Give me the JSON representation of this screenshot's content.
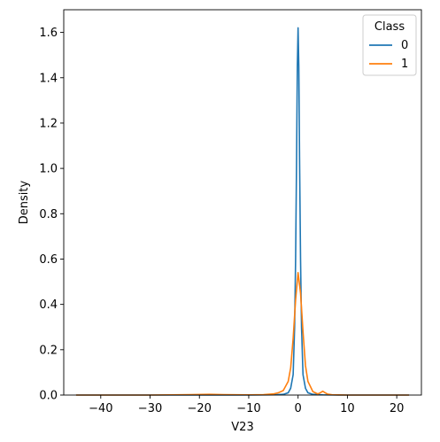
{
  "chart_data": {
    "type": "line",
    "xlabel": "V23",
    "ylabel": "Density",
    "xlim": [
      -47.5,
      25
    ],
    "ylim": [
      0,
      1.7
    ],
    "x_ticks": [
      -40,
      -30,
      -20,
      -10,
      0,
      10,
      20
    ],
    "x_tick_labels": [
      "−40",
      "−30",
      "−20",
      "−10",
      "0",
      "10",
      "20"
    ],
    "y_ticks": [
      0.0,
      0.2,
      0.4,
      0.6,
      0.8,
      1.0,
      1.2,
      1.4,
      1.6
    ],
    "y_tick_labels": [
      "0.0",
      "0.2",
      "0.4",
      "0.6",
      "0.8",
      "1.0",
      "1.2",
      "1.4",
      "1.6"
    ],
    "grid": false,
    "legend": {
      "title": "Class",
      "placement": "top-right"
    },
    "series": [
      {
        "name": "0",
        "color": "#1f77b4",
        "x": [
          -45,
          -30,
          -20,
          -10,
          -5,
          -3,
          -2,
          -1.5,
          -1,
          -0.7,
          -0.5,
          -0.3,
          -0.15,
          0,
          0.15,
          0.3,
          0.5,
          0.7,
          1,
          1.5,
          2,
          3,
          5,
          10,
          22.5
        ],
        "y": [
          0,
          0,
          0,
          0,
          0.001,
          0.003,
          0.01,
          0.03,
          0.09,
          0.3,
          0.6,
          1.05,
          1.45,
          1.62,
          1.45,
          1.05,
          0.6,
          0.3,
          0.09,
          0.03,
          0.01,
          0.003,
          0.001,
          0,
          0
        ]
      },
      {
        "name": "1",
        "color": "#ff7f0e",
        "x": [
          -45,
          -30,
          -22,
          -18,
          -15,
          -10,
          -7,
          -5,
          -4,
          -3,
          -2,
          -1.5,
          -1,
          -0.5,
          0,
          0.5,
          1,
          1.5,
          2,
          3,
          4,
          4.5,
          5,
          5.5,
          6,
          7,
          10,
          22.5
        ],
        "y": [
          0,
          0,
          0.002,
          0.003,
          0.002,
          0.001,
          0.002,
          0.005,
          0.01,
          0.02,
          0.06,
          0.12,
          0.25,
          0.42,
          0.54,
          0.45,
          0.28,
          0.13,
          0.06,
          0.015,
          0.005,
          0.01,
          0.017,
          0.01,
          0.004,
          0.001,
          0,
          0
        ]
      }
    ]
  }
}
